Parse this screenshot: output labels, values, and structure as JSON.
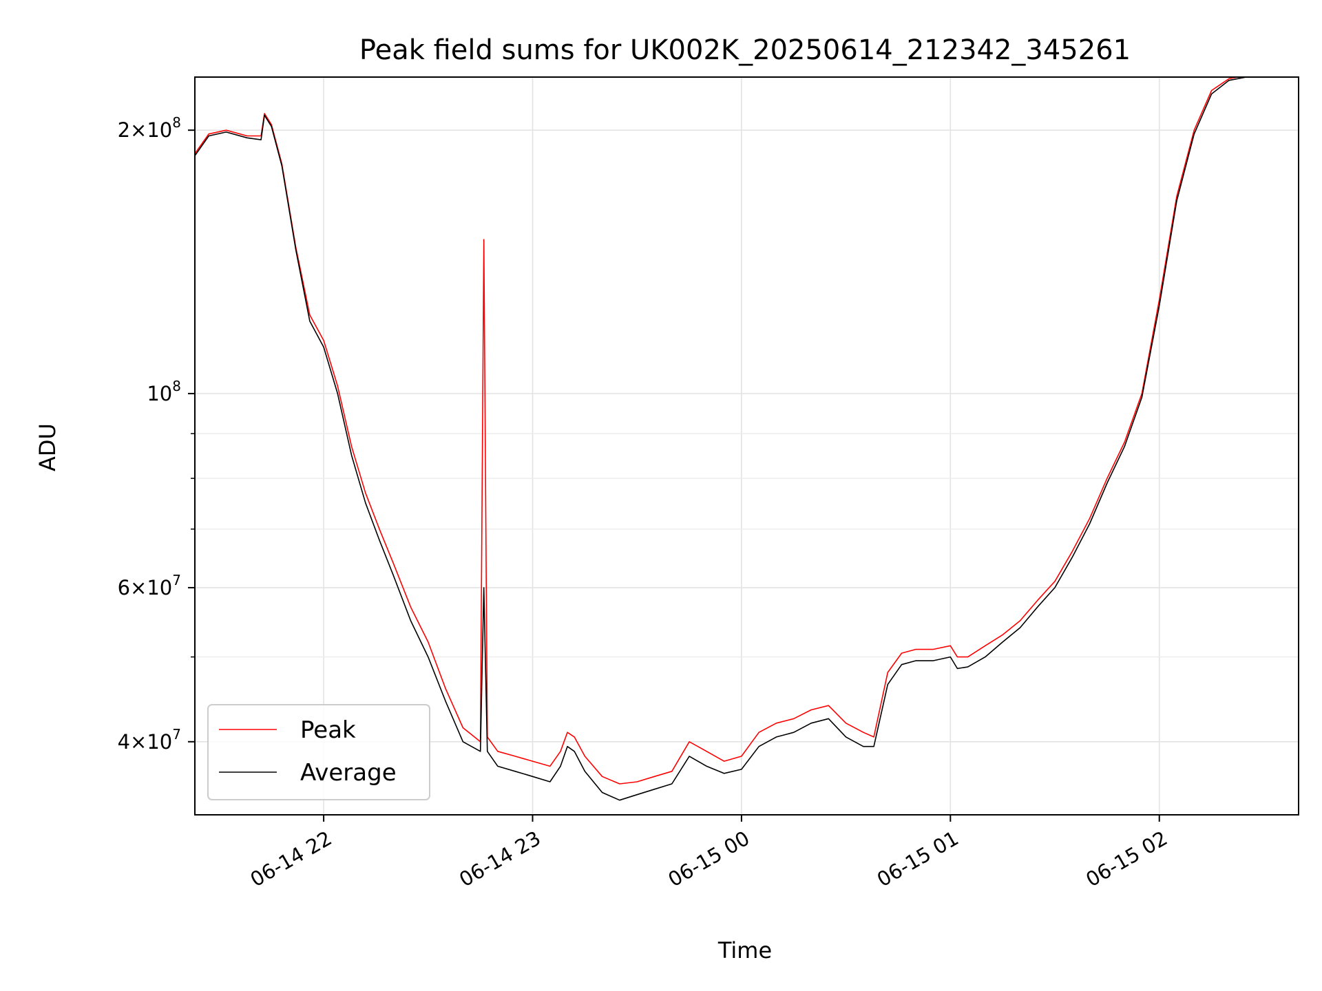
{
  "chart_data": {
    "type": "line",
    "title": "Peak field sums for UK002K_20250614_212342_345261",
    "xlabel": "Time",
    "ylabel": "ADU",
    "yscale": "log",
    "ylim": [
      33000000,
      230000000
    ],
    "xlim": [
      "06-14 21:23",
      "06-15 02:40"
    ],
    "grid": true,
    "legend": "lower-left",
    "x_ticks": [
      {
        "label": "06-14 22",
        "time": "06-14 22:00"
      },
      {
        "label": "06-14 23",
        "time": "06-14 23:00"
      },
      {
        "label": "06-15 00",
        "time": "06-15 00:00"
      },
      {
        "label": "06-15 01",
        "time": "06-15 01:00"
      },
      {
        "label": "06-15 02",
        "time": "06-15 02:00"
      }
    ],
    "y_ticks": [
      {
        "value": 40000000,
        "mant": "4",
        "exp": "7"
      },
      {
        "value": 60000000,
        "mant": "6",
        "exp": "7"
      },
      {
        "value": 100000000,
        "mant": "",
        "exp": "8"
      },
      {
        "value": 200000000,
        "mant": "2",
        "exp": "8"
      }
    ],
    "y_minor_ticks": [
      50000000,
      70000000,
      80000000,
      90000000
    ],
    "series": [
      {
        "name": "Peak",
        "color": "#ff0000",
        "x": [
          "06-14 21:23",
          "06-14 21:27",
          "06-14 21:32",
          "06-14 21:38",
          "06-14 21:42",
          "06-14 21:43",
          "06-14 21:45",
          "06-14 21:48",
          "06-14 21:52",
          "06-14 21:56",
          "06-14 22:00",
          "06-14 22:04",
          "06-14 22:08",
          "06-14 22:12",
          "06-14 22:16",
          "06-14 22:20",
          "06-14 22:25",
          "06-14 22:30",
          "06-14 22:35",
          "06-14 22:40",
          "06-14 22:45",
          "06-14 22:46",
          "06-14 22:47",
          "06-14 22:50",
          "06-14 22:55",
          "06-14 23:00",
          "06-14 23:05",
          "06-14 23:08",
          "06-14 23:10",
          "06-14 23:12",
          "06-14 23:15",
          "06-14 23:20",
          "06-14 23:25",
          "06-14 23:30",
          "06-14 23:35",
          "06-14 23:40",
          "06-14 23:45",
          "06-14 23:50",
          "06-14 23:55",
          "06-15 00:00",
          "06-15 00:05",
          "06-15 00:10",
          "06-15 00:15",
          "06-15 00:20",
          "06-15 00:25",
          "06-15 00:30",
          "06-15 00:35",
          "06-15 00:38",
          "06-15 00:42",
          "06-15 00:46",
          "06-15 00:50",
          "06-15 00:55",
          "06-15 01:00",
          "06-15 01:02",
          "06-15 01:05",
          "06-15 01:10",
          "06-15 01:15",
          "06-15 01:20",
          "06-15 01:25",
          "06-15 01:30",
          "06-15 01:35",
          "06-15 01:40",
          "06-15 01:45",
          "06-15 01:50",
          "06-15 01:55",
          "06-15 02:00",
          "06-15 02:05",
          "06-15 02:10",
          "06-15 02:15",
          "06-15 02:20",
          "06-15 02:25",
          "06-15 02:30",
          "06-15 02:35",
          "06-15 02:40"
        ],
        "y": [
          188000000,
          198000000,
          200000000,
          197000000,
          197000000,
          209000000,
          203000000,
          183000000,
          147000000,
          123000000,
          115000000,
          102000000,
          87000000,
          77000000,
          70000000,
          64000000,
          57000000,
          52000000,
          46000000,
          41500000,
          40000000,
          150000000,
          40500000,
          39000000,
          38500000,
          38000000,
          37500000,
          39000000,
          41000000,
          40500000,
          38500000,
          36500000,
          35800000,
          36000000,
          36500000,
          37000000,
          40000000,
          39000000,
          38000000,
          38500000,
          41000000,
          42000000,
          42500000,
          43500000,
          44000000,
          42000000,
          41000000,
          40500000,
          48000000,
          50500000,
          51000000,
          51000000,
          51500000,
          50000000,
          50000000,
          51500000,
          53000000,
          55000000,
          58000000,
          61000000,
          66000000,
          72000000,
          80000000,
          88000000,
          100000000,
          128000000,
          168000000,
          200000000,
          222000000,
          229000000,
          231000000,
          232000000,
          232000000,
          232000000
        ]
      },
      {
        "name": "Average",
        "color": "#000000",
        "x": [
          "06-14 21:23",
          "06-14 21:27",
          "06-14 21:32",
          "06-14 21:38",
          "06-14 21:42",
          "06-14 21:43",
          "06-14 21:45",
          "06-14 21:48",
          "06-14 21:52",
          "06-14 21:56",
          "06-14 22:00",
          "06-14 22:04",
          "06-14 22:08",
          "06-14 22:12",
          "06-14 22:16",
          "06-14 22:20",
          "06-14 22:25",
          "06-14 22:30",
          "06-14 22:35",
          "06-14 22:40",
          "06-14 22:45",
          "06-14 22:46",
          "06-14 22:47",
          "06-14 22:50",
          "06-14 22:55",
          "06-14 23:00",
          "06-14 23:05",
          "06-14 23:08",
          "06-14 23:10",
          "06-14 23:12",
          "06-14 23:15",
          "06-14 23:20",
          "06-14 23:25",
          "06-14 23:30",
          "06-14 23:35",
          "06-14 23:40",
          "06-14 23:45",
          "06-14 23:50",
          "06-14 23:55",
          "06-15 00:00",
          "06-15 00:05",
          "06-15 00:10",
          "06-15 00:15",
          "06-15 00:20",
          "06-15 00:25",
          "06-15 00:30",
          "06-15 00:35",
          "06-15 00:38",
          "06-15 00:42",
          "06-15 00:46",
          "06-15 00:50",
          "06-15 00:55",
          "06-15 01:00",
          "06-15 01:02",
          "06-15 01:05",
          "06-15 01:10",
          "06-15 01:15",
          "06-15 01:20",
          "06-15 01:25",
          "06-15 01:30",
          "06-15 01:35",
          "06-15 01:40",
          "06-15 01:45",
          "06-15 01:50",
          "06-15 01:55",
          "06-15 02:00",
          "06-15 02:05",
          "06-15 02:10",
          "06-15 02:15",
          "06-15 02:20",
          "06-15 02:25",
          "06-15 02:30",
          "06-15 02:35",
          "06-15 02:40"
        ],
        "y": [
          187000000,
          197000000,
          199000000,
          196000000,
          195000000,
          208000000,
          202000000,
          182000000,
          146000000,
          121000000,
          113000000,
          100000000,
          85000000,
          75000000,
          68000000,
          62000000,
          55000000,
          50000000,
          44500000,
          40000000,
          39000000,
          60000000,
          39000000,
          37500000,
          37000000,
          36500000,
          36000000,
          37500000,
          39500000,
          39000000,
          37000000,
          35000000,
          34300000,
          34800000,
          35300000,
          35800000,
          38500000,
          37500000,
          36800000,
          37200000,
          39500000,
          40500000,
          41000000,
          42000000,
          42500000,
          40500000,
          39500000,
          39500000,
          46500000,
          49000000,
          49500000,
          49500000,
          50000000,
          48500000,
          48700000,
          50000000,
          52000000,
          54000000,
          57000000,
          60000000,
          65000000,
          71000000,
          79000000,
          87000000,
          99000000,
          126000000,
          166000000,
          198000000,
          220000000,
          228000000,
          230000000,
          231000000,
          231000000,
          231000000
        ]
      }
    ]
  }
}
